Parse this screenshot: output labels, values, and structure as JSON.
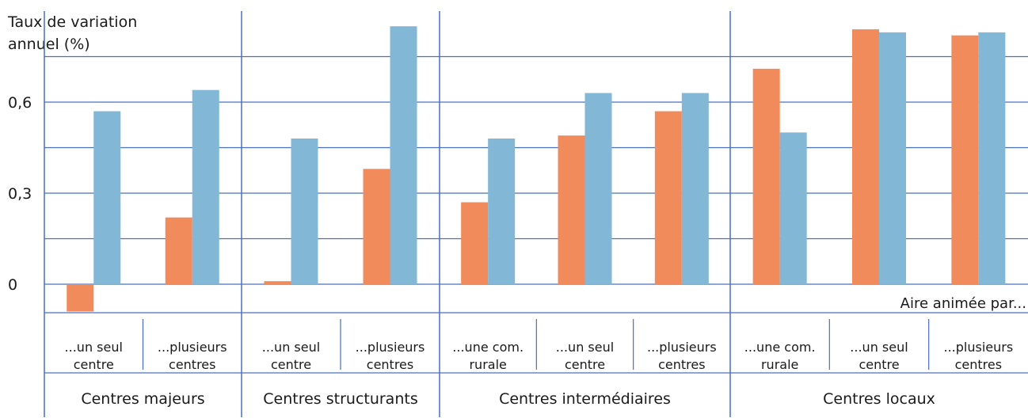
{
  "chart_data": {
    "type": "bar",
    "ylabel_lines": [
      "Taux de variation",
      "annuel (%)"
    ],
    "yticks": [
      "0",
      "0,3",
      "0,6"
    ],
    "ylim": [
      -0.15,
      0.93
    ],
    "annotation": "Aire animée par...",
    "colors": {
      "orange": "#f28b5c",
      "blue": "#82b7d6",
      "grid": "#4a6fc1"
    },
    "groups": [
      {
        "label": "Centres majeurs",
        "categories": [
          {
            "label": [
              "...un seul",
              "centre"
            ],
            "values": [
              -0.09,
              0.57
            ]
          },
          {
            "label": [
              "...plusieurs",
              "centres"
            ],
            "values": [
              0.22,
              0.64
            ]
          }
        ]
      },
      {
        "label": "Centres structurants",
        "categories": [
          {
            "label": [
              "...un seul",
              "centre"
            ],
            "values": [
              0.01,
              0.48
            ]
          },
          {
            "label": [
              "...plusieurs",
              "centres"
            ],
            "values": [
              0.38,
              0.85
            ]
          }
        ]
      },
      {
        "label": "Centres intermédiaires",
        "categories": [
          {
            "label": [
              "...une com.",
              "rurale"
            ],
            "values": [
              0.27,
              0.48
            ]
          },
          {
            "label": [
              "...un seul",
              "centre"
            ],
            "values": [
              0.49,
              0.63
            ]
          },
          {
            "label": [
              "...plusieurs",
              "centres"
            ],
            "values": [
              0.57,
              0.63
            ]
          }
        ]
      },
      {
        "label": "Centres locaux",
        "categories": [
          {
            "label": [
              "...une com.",
              "rurale"
            ],
            "values": [
              0.71,
              0.5
            ]
          },
          {
            "label": [
              "...un seul",
              "centre"
            ],
            "values": [
              0.84,
              0.83
            ]
          },
          {
            "label": [
              "...plusieurs",
              "centres"
            ],
            "values": [
              0.82,
              0.83
            ]
          }
        ]
      }
    ]
  }
}
